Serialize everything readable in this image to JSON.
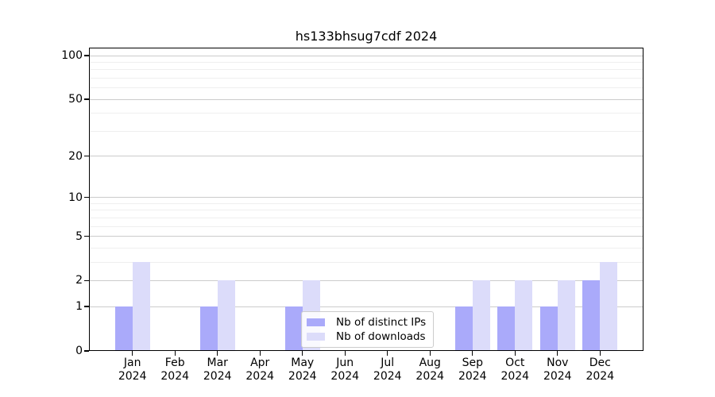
{
  "chart_data": {
    "type": "bar",
    "title": "hs133bhsug7cdf 2024",
    "x_categories": [
      {
        "month": "Jan",
        "year": "2024"
      },
      {
        "month": "Feb",
        "year": "2024"
      },
      {
        "month": "Mar",
        "year": "2024"
      },
      {
        "month": "Apr",
        "year": "2024"
      },
      {
        "month": "May",
        "year": "2024"
      },
      {
        "month": "Jun",
        "year": "2024"
      },
      {
        "month": "Jul",
        "year": "2024"
      },
      {
        "month": "Aug",
        "year": "2024"
      },
      {
        "month": "Sep",
        "year": "2024"
      },
      {
        "month": "Oct",
        "year": "2024"
      },
      {
        "month": "Nov",
        "year": "2024"
      },
      {
        "month": "Dec",
        "year": "2024"
      }
    ],
    "series": [
      {
        "name": "Nb of distinct IPs",
        "color": "#aaaafa",
        "values": [
          1,
          0,
          1,
          0,
          1,
          0,
          0,
          0,
          1,
          1,
          1,
          2
        ]
      },
      {
        "name": "Nb of downloads",
        "color": "#dcdcfa",
        "values": [
          3,
          0,
          2,
          0,
          2,
          0,
          0,
          0,
          2,
          2,
          2,
          3
        ]
      }
    ],
    "y_scale": "log1p",
    "ylim": [
      0,
      100
    ],
    "y_major_ticks": [
      0,
      1,
      2,
      5,
      10,
      20,
      50,
      100
    ],
    "y_minor_ticks": [
      3,
      4,
      6,
      7,
      8,
      9,
      30,
      40,
      60,
      70,
      80,
      90
    ],
    "grid": "horizontal",
    "legend_position": "lower center",
    "colors": {
      "major_grid": "#cbcbcb",
      "minor_grid": "#efefef",
      "axis": "#000000",
      "background": "#ffffff"
    }
  }
}
